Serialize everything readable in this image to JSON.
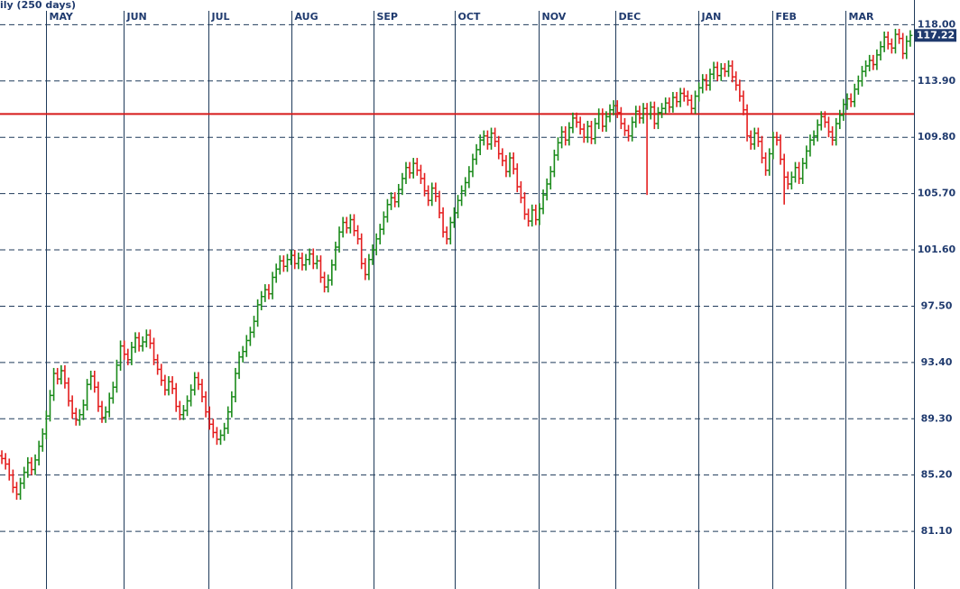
{
  "chart_data": {
    "type": "ohlc",
    "title": "ily (250 days)",
    "open": [
      86.6,
      86.4,
      86.0,
      85.2,
      84.3,
      83.8,
      84.6,
      85.4,
      86.1,
      85.6,
      86.3,
      87.3,
      88.2,
      89.5,
      91.0,
      92.6,
      92.2,
      92.8,
      91.9,
      90.6,
      89.7,
      89.2,
      89.6,
      90.3,
      91.8,
      92.4,
      91.6,
      90.2,
      89.4,
      89.8,
      90.8,
      91.6,
      93.2,
      94.6,
      94.0,
      93.6,
      94.5,
      95.2,
      94.6,
      94.9,
      95.4,
      94.8,
      93.6,
      92.9,
      92.1,
      91.4,
      92.0,
      91.5,
      90.2,
      89.6,
      89.9,
      90.6,
      91.4,
      92.3,
      91.8,
      90.9,
      89.8,
      88.9,
      88.3,
      87.8,
      88.1,
      88.6,
      89.8,
      90.9,
      92.6,
      93.8,
      94.2,
      95.0,
      95.6,
      96.4,
      97.6,
      98.2,
      98.7,
      98.4,
      99.6,
      100.2,
      100.8,
      100.4,
      100.9,
      101.2,
      100.6,
      101.0,
      100.5,
      100.9,
      101.3,
      100.6,
      100.8,
      99.6,
      98.9,
      99.4,
      100.5,
      101.8,
      102.9,
      103.6,
      103.2,
      103.8,
      103.0,
      102.4,
      100.6,
      99.8,
      100.9,
      101.6,
      102.4,
      103.1,
      104.0,
      104.9,
      105.4,
      105.1,
      106.0,
      106.8,
      107.6,
      107.2,
      107.9,
      107.4,
      106.8,
      105.9,
      105.2,
      106.1,
      105.5,
      104.3,
      102.9,
      102.4,
      103.6,
      104.3,
      105.2,
      105.9,
      106.5,
      107.3,
      108.2,
      108.9,
      109.6,
      109.9,
      109.3,
      110.1,
      109.5,
      108.6,
      108.1,
      107.3,
      108.3,
      107.5,
      106.2,
      105.4,
      104.2,
      103.7,
      104.5,
      103.8,
      104.6,
      105.6,
      106.4,
      107.3,
      108.5,
      109.4,
      110.2,
      109.6,
      110.5,
      111.2,
      110.9,
      110.4,
      109.8,
      110.6,
      109.7,
      110.8,
      111.5,
      110.6,
      111.3,
      111.8,
      112.1,
      111.6,
      110.8,
      110.3,
      109.9,
      110.9,
      111.7,
      111.2,
      111.9,
      111.5,
      112.0,
      110.8,
      111.6,
      111.9,
      112.3,
      112.0,
      112.7,
      112.4,
      113.0,
      112.8,
      112.5,
      111.9,
      112.8,
      113.4,
      114.0,
      113.6,
      114.4,
      114.9,
      114.3,
      114.8,
      114.6,
      115.0,
      114.2,
      113.6,
      112.8,
      111.8,
      109.9,
      109.3,
      110.1,
      109.5,
      108.3,
      107.4,
      108.6,
      109.8,
      109.6,
      108.2,
      106.9,
      106.4,
      106.9,
      107.6,
      106.8,
      107.9,
      108.8,
      109.6,
      109.9,
      110.7,
      111.3,
      110.9,
      110.2,
      109.6,
      110.8,
      111.4,
      112.2,
      112.6,
      112.4,
      113.3,
      113.9,
      114.6,
      115.0,
      115.4,
      115.1,
      115.8,
      116.4,
      117.1,
      116.6,
      116.3,
      117.3,
      117.0,
      115.9,
      116.8
    ],
    "high": [
      87.0,
      86.8,
      86.4,
      85.6,
      84.7,
      85.0,
      85.8,
      86.5,
      86.5,
      86.7,
      87.7,
      88.6,
      89.9,
      91.4,
      93.0,
      93.0,
      93.2,
      93.2,
      92.3,
      91.0,
      90.1,
      90.0,
      90.7,
      92.2,
      92.8,
      92.8,
      92.0,
      90.6,
      90.2,
      91.2,
      92.0,
      93.6,
      95.0,
      95.0,
      94.4,
      94.9,
      95.6,
      95.6,
      95.3,
      95.8,
      95.8,
      95.2,
      94.0,
      93.3,
      92.5,
      92.4,
      92.4,
      91.9,
      90.6,
      90.3,
      91.0,
      91.8,
      92.7,
      92.7,
      92.2,
      91.3,
      90.2,
      89.3,
      88.7,
      88.5,
      89.0,
      90.2,
      91.3,
      93.0,
      94.2,
      94.6,
      95.4,
      96.0,
      96.8,
      98.0,
      98.6,
      99.1,
      99.1,
      100.0,
      100.6,
      101.2,
      101.2,
      101.3,
      101.6,
      101.6,
      101.4,
      101.4,
      101.3,
      101.7,
      101.7,
      101.2,
      101.2,
      100.0,
      99.8,
      100.9,
      102.2,
      103.3,
      104.0,
      104.0,
      104.2,
      104.2,
      103.4,
      102.8,
      101.0,
      101.3,
      102.0,
      102.8,
      103.5,
      104.4,
      105.3,
      105.8,
      105.8,
      106.4,
      107.2,
      108.0,
      108.0,
      108.3,
      108.3,
      107.8,
      107.2,
      106.3,
      106.5,
      106.5,
      105.9,
      104.7,
      103.3,
      104.0,
      104.7,
      105.6,
      106.3,
      106.9,
      107.7,
      108.6,
      109.3,
      110.0,
      110.3,
      110.3,
      110.5,
      110.5,
      109.9,
      109.0,
      108.5,
      108.7,
      108.7,
      107.9,
      106.6,
      105.8,
      104.6,
      104.9,
      104.9,
      105.0,
      106.0,
      106.8,
      107.7,
      108.9,
      109.8,
      110.6,
      110.6,
      110.9,
      111.6,
      111.6,
      111.3,
      110.8,
      111.0,
      111.0,
      111.2,
      111.9,
      111.9,
      111.7,
      112.2,
      112.5,
      112.5,
      112.0,
      111.2,
      110.7,
      111.3,
      112.1,
      112.1,
      112.3,
      112.3,
      112.4,
      112.4,
      112.0,
      112.3,
      112.7,
      112.7,
      113.1,
      113.1,
      113.4,
      113.4,
      113.2,
      112.9,
      113.2,
      113.8,
      114.4,
      114.4,
      114.8,
      115.3,
      115.3,
      115.2,
      115.2,
      115.4,
      115.4,
      114.6,
      114.0,
      113.2,
      112.2,
      110.3,
      110.5,
      110.5,
      109.9,
      108.7,
      109.0,
      110.2,
      110.2,
      110.0,
      108.6,
      107.3,
      107.3,
      108.0,
      108.0,
      108.3,
      109.2,
      110.0,
      110.3,
      111.1,
      111.7,
      111.7,
      111.3,
      110.6,
      111.2,
      111.8,
      112.6,
      113.0,
      113.0,
      113.7,
      114.3,
      115.0,
      115.4,
      115.8,
      115.8,
      116.2,
      116.8,
      117.5,
      117.5,
      117.0,
      117.7,
      117.7,
      117.4,
      117.2,
      117.6
    ],
    "low": [
      86.0,
      85.6,
      84.8,
      83.9,
      83.4,
      83.4,
      84.2,
      85.0,
      85.2,
      85.2,
      85.9,
      86.9,
      87.8,
      89.1,
      90.6,
      91.8,
      91.8,
      91.5,
      90.2,
      89.3,
      88.8,
      88.8,
      89.2,
      89.9,
      91.4,
      91.2,
      89.8,
      89.0,
      89.0,
      89.4,
      90.4,
      91.2,
      92.8,
      93.6,
      93.2,
      93.2,
      94.1,
      94.2,
      94.2,
      94.5,
      94.4,
      93.2,
      92.5,
      91.7,
      91.0,
      91.0,
      91.1,
      89.8,
      89.2,
      89.2,
      89.5,
      90.2,
      91.0,
      91.4,
      90.5,
      89.4,
      88.5,
      87.9,
      87.4,
      87.4,
      87.7,
      88.2,
      89.4,
      90.5,
      92.2,
      93.4,
      93.8,
      94.6,
      95.2,
      96.0,
      97.2,
      97.8,
      98.0,
      98.0,
      99.2,
      99.8,
      100.0,
      100.0,
      100.5,
      100.2,
      100.2,
      100.1,
      100.1,
      100.5,
      100.2,
      100.2,
      99.2,
      98.5,
      98.5,
      99.0,
      100.1,
      101.4,
      102.5,
      102.8,
      102.8,
      102.6,
      102.0,
      100.2,
      99.4,
      99.4,
      100.5,
      101.2,
      102.0,
      102.7,
      103.6,
      104.5,
      104.7,
      104.7,
      105.6,
      106.4,
      106.8,
      106.8,
      107.0,
      106.4,
      105.5,
      104.8,
      104.8,
      105.1,
      103.9,
      102.5,
      102.0,
      102.0,
      103.2,
      103.9,
      104.8,
      105.5,
      106.1,
      106.9,
      107.8,
      108.5,
      109.2,
      108.9,
      108.9,
      109.1,
      108.2,
      107.7,
      106.9,
      106.9,
      107.1,
      105.8,
      105.0,
      103.8,
      103.3,
      103.3,
      103.4,
      103.4,
      104.2,
      105.2,
      106.0,
      106.9,
      108.1,
      109.0,
      109.2,
      109.2,
      110.1,
      110.5,
      110.0,
      109.4,
      109.4,
      109.3,
      109.3,
      110.4,
      110.2,
      110.2,
      110.9,
      111.4,
      111.2,
      110.4,
      109.9,
      109.5,
      109.5,
      110.5,
      110.8,
      110.8,
      105.6,
      111.1,
      110.4,
      110.4,
      111.2,
      111.5,
      111.6,
      111.6,
      112.0,
      112.0,
      112.4,
      112.1,
      111.5,
      111.5,
      112.4,
      113.0,
      113.2,
      113.2,
      114.0,
      113.9,
      113.9,
      114.2,
      114.2,
      113.8,
      113.2,
      112.4,
      111.4,
      109.5,
      108.9,
      108.9,
      109.1,
      107.9,
      107.0,
      107.0,
      108.2,
      109.2,
      107.8,
      104.9,
      106.0,
      106.0,
      106.5,
      106.4,
      106.4,
      107.5,
      108.4,
      109.2,
      109.5,
      110.3,
      110.5,
      109.8,
      109.2,
      109.2,
      110.4,
      111.0,
      111.8,
      112.0,
      112.0,
      112.9,
      113.5,
      114.2,
      114.6,
      114.7,
      114.7,
      115.4,
      116.0,
      116.2,
      115.9,
      115.9,
      116.6,
      115.5,
      115.5,
      116.4
    ],
    "close": [
      86.4,
      86.0,
      85.2,
      84.3,
      83.8,
      84.6,
      85.4,
      86.1,
      85.6,
      86.3,
      87.3,
      88.2,
      89.5,
      91.0,
      92.6,
      92.2,
      92.8,
      91.9,
      90.6,
      89.7,
      89.2,
      89.6,
      90.3,
      91.8,
      92.4,
      91.6,
      90.2,
      89.4,
      89.8,
      90.8,
      91.6,
      93.2,
      94.6,
      94.0,
      93.6,
      94.5,
      95.2,
      94.6,
      94.9,
      95.4,
      94.8,
      93.6,
      92.9,
      92.1,
      91.4,
      92.0,
      91.5,
      90.2,
      89.6,
      89.9,
      90.6,
      91.4,
      92.3,
      91.8,
      90.9,
      89.8,
      88.9,
      88.3,
      87.8,
      88.1,
      88.6,
      89.8,
      90.9,
      92.6,
      93.8,
      94.2,
      95.0,
      95.6,
      96.4,
      97.6,
      98.2,
      98.7,
      98.4,
      99.6,
      100.2,
      100.8,
      100.4,
      100.9,
      101.2,
      100.6,
      101.0,
      100.5,
      100.9,
      101.3,
      100.6,
      100.8,
      99.6,
      98.9,
      99.4,
      100.5,
      101.8,
      102.9,
      103.6,
      103.2,
      103.8,
      103.0,
      102.4,
      100.6,
      99.8,
      100.9,
      101.6,
      102.4,
      103.1,
      104.0,
      104.9,
      105.4,
      105.1,
      106.0,
      106.8,
      107.6,
      107.2,
      107.9,
      107.4,
      106.8,
      105.9,
      105.2,
      106.1,
      105.5,
      104.3,
      102.9,
      102.4,
      103.6,
      104.3,
      105.2,
      105.9,
      106.5,
      107.3,
      108.2,
      108.9,
      109.6,
      109.9,
      109.3,
      110.1,
      109.5,
      108.6,
      108.1,
      107.3,
      108.3,
      107.5,
      106.2,
      105.4,
      104.2,
      103.7,
      104.5,
      103.8,
      104.6,
      105.6,
      106.4,
      107.3,
      108.5,
      109.4,
      110.2,
      109.6,
      110.5,
      111.2,
      110.9,
      110.4,
      109.8,
      110.6,
      109.7,
      110.8,
      111.5,
      110.6,
      111.3,
      111.8,
      112.1,
      111.6,
      110.8,
      110.3,
      109.9,
      110.9,
      111.7,
      111.2,
      111.9,
      111.5,
      112.0,
      110.8,
      111.6,
      111.9,
      112.3,
      112.0,
      112.7,
      112.4,
      113.0,
      112.8,
      112.5,
      111.9,
      112.8,
      113.4,
      114.0,
      113.6,
      114.4,
      114.9,
      114.3,
      114.8,
      114.6,
      115.0,
      114.2,
      113.6,
      112.8,
      111.8,
      109.9,
      109.3,
      110.1,
      109.5,
      108.3,
      107.4,
      108.6,
      109.8,
      109.6,
      108.2,
      106.9,
      106.4,
      106.9,
      107.6,
      106.8,
      107.9,
      108.8,
      109.6,
      109.9,
      110.7,
      111.3,
      110.9,
      110.2,
      109.6,
      110.8,
      111.4,
      112.2,
      112.6,
      112.4,
      113.3,
      113.9,
      114.6,
      115.0,
      115.4,
      115.1,
      115.8,
      116.4,
      117.1,
      116.6,
      116.3,
      117.3,
      117.0,
      115.9,
      116.8,
      117.22
    ],
    "up_color": "#1a8a1a",
    "down_color": "#e41e1e",
    "xlim": [
      -0.5,
      246
    ],
    "xticks": [
      {
        "value": 11.9,
        "label": "MAY"
      },
      {
        "value": 32.8,
        "label": "JUN"
      },
      {
        "value": 55.7,
        "label": "JUL"
      },
      {
        "value": 78.1,
        "label": "AUG"
      },
      {
        "value": 100.2,
        "label": "SEP"
      },
      {
        "value": 122.1,
        "label": "OCT"
      },
      {
        "value": 144.8,
        "label": "NOV"
      },
      {
        "value": 165.4,
        "label": "DEC"
      },
      {
        "value": 187.8,
        "label": "JAN"
      },
      {
        "value": 207.8,
        "label": "FEB"
      },
      {
        "value": 227.5,
        "label": "MAR"
      }
    ],
    "ylim": [
      76.9,
      119.8
    ],
    "yticks": [
      {
        "value": 118,
        "label": "118.00"
      },
      {
        "value": 113.9,
        "label": "113.90"
      },
      {
        "value": 109.8,
        "label": "109.80"
      },
      {
        "value": 105.7,
        "label": "105.70"
      },
      {
        "value": 101.6,
        "label": "101.60"
      },
      {
        "value": 97.5,
        "label": "97.50"
      },
      {
        "value": 93.4,
        "label": "93.40"
      },
      {
        "value": 89.3,
        "label": "89.30"
      },
      {
        "value": 85.2,
        "label": "85.20"
      },
      {
        "value": 81.1,
        "label": "81.10"
      }
    ],
    "reference_line": {
      "value": 111.5,
      "color": "#d61a1a"
    },
    "grid": true
  }
}
